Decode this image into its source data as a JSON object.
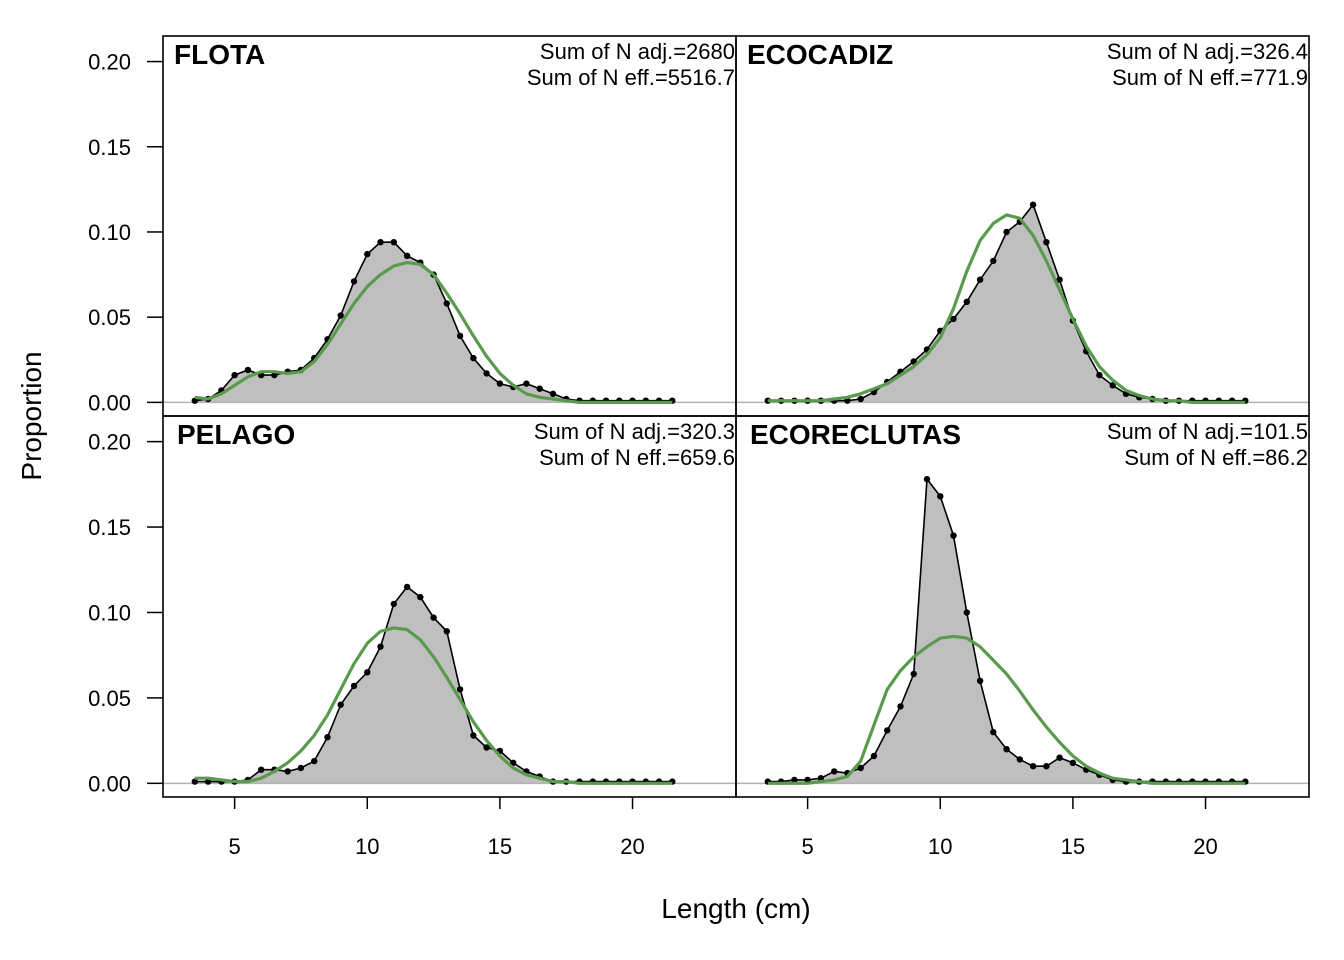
{
  "chart_data": {
    "type": "area",
    "xlabel": "Length (cm)",
    "ylabel": "Proportion",
    "xlim": [
      2.3,
      23.9
    ],
    "ylim": [
      -0.008,
      0.215
    ],
    "x_ticks": [
      5,
      10,
      15,
      20
    ],
    "x_tick_labels": [
      "5",
      "10",
      "15",
      "20"
    ],
    "y_ticks": [
      0,
      0.05,
      0.1,
      0.15,
      0.2
    ],
    "y_tick_labels": [
      "0.00",
      "0.05",
      "0.10",
      "0.15",
      "0.20"
    ],
    "grid": false,
    "legend": "none",
    "colors": {
      "observed_fill": "#bfbfbf",
      "observed_line": "#000000",
      "expected_line": "#5a9a4e",
      "zero_line": "#b3b3b3"
    },
    "x": [
      3.5,
      4,
      4.5,
      5,
      5.5,
      6,
      6.5,
      7,
      7.5,
      8,
      8.5,
      9,
      9.5,
      10,
      10.5,
      11,
      11.5,
      12,
      12.5,
      13,
      13.5,
      14,
      14.5,
      15,
      15.5,
      16,
      16.5,
      17,
      17.5,
      18,
      18.5,
      19,
      19.5,
      20,
      20.5,
      21,
      21.5
    ],
    "panels": [
      {
        "title": "FLOTA",
        "stat_adj": "Sum of N adj.=2680",
        "stat_eff": "Sum of N eff.=5516.7",
        "observed": [
          0.001,
          0.002,
          0.007,
          0.016,
          0.019,
          0.016,
          0.016,
          0.018,
          0.019,
          0.026,
          0.037,
          0.051,
          0.071,
          0.087,
          0.094,
          0.094,
          0.086,
          0.082,
          0.075,
          0.058,
          0.039,
          0.026,
          0.017,
          0.011,
          0.009,
          0.011,
          0.008,
          0.005,
          0.002,
          0.001,
          0.001,
          0.001,
          0.001,
          0.001,
          0.001,
          0.001,
          0.001
        ],
        "expected": [
          0.003,
          0.002,
          0.005,
          0.01,
          0.015,
          0.018,
          0.018,
          0.017,
          0.018,
          0.024,
          0.034,
          0.046,
          0.058,
          0.068,
          0.075,
          0.08,
          0.082,
          0.081,
          0.075,
          0.064,
          0.052,
          0.039,
          0.027,
          0.017,
          0.01,
          0.005,
          0.003,
          0.002,
          0.001,
          0,
          0,
          0,
          0,
          0,
          0,
          0,
          0
        ]
      },
      {
        "title": "ECOCADIZ",
        "stat_adj": "Sum of N adj.=326.4",
        "stat_eff": "Sum of N eff.=771.9",
        "observed": [
          0.001,
          0.001,
          0.001,
          0.001,
          0.001,
          0.001,
          0.001,
          0.002,
          0.006,
          0.012,
          0.018,
          0.024,
          0.031,
          0.042,
          0.049,
          0.059,
          0.072,
          0.083,
          0.1,
          0.106,
          0.116,
          0.094,
          0.072,
          0.048,
          0.03,
          0.016,
          0.01,
          0.005,
          0.003,
          0.002,
          0.001,
          0.001,
          0.001,
          0.001,
          0.001,
          0.001,
          0.001
        ],
        "expected": [
          0.001,
          0.001,
          0.001,
          0.001,
          0.001,
          0.002,
          0.003,
          0.005,
          0.008,
          0.011,
          0.016,
          0.021,
          0.028,
          0.038,
          0.055,
          0.077,
          0.095,
          0.105,
          0.11,
          0.108,
          0.098,
          0.083,
          0.066,
          0.049,
          0.033,
          0.021,
          0.013,
          0.007,
          0.004,
          0.002,
          0.001,
          0.001,
          0,
          0,
          0,
          0,
          0
        ]
      },
      {
        "title": "PELAGO",
        "stat_adj": "Sum of N adj.=320.3",
        "stat_eff": "Sum of N eff.=659.6",
        "observed": [
          0.001,
          0.001,
          0.001,
          0.001,
          0.002,
          0.008,
          0.008,
          0.007,
          0.009,
          0.013,
          0.027,
          0.046,
          0.057,
          0.065,
          0.08,
          0.105,
          0.115,
          0.109,
          0.097,
          0.089,
          0.055,
          0.028,
          0.021,
          0.019,
          0.012,
          0.007,
          0.004,
          0.001,
          0.001,
          0.001,
          0.001,
          0.001,
          0.001,
          0.001,
          0.001,
          0.001,
          0.001
        ],
        "expected": [
          0.003,
          0.003,
          0.002,
          0.001,
          0.001,
          0.003,
          0.007,
          0.012,
          0.019,
          0.028,
          0.04,
          0.055,
          0.07,
          0.082,
          0.089,
          0.091,
          0.09,
          0.084,
          0.074,
          0.062,
          0.049,
          0.036,
          0.025,
          0.016,
          0.009,
          0.005,
          0.003,
          0.001,
          0.001,
          0,
          0,
          0,
          0,
          0,
          0,
          0,
          0
        ]
      },
      {
        "title": "ECORECLUTAS",
        "stat_adj": "Sum of N adj.=101.5",
        "stat_eff": "Sum of N eff.=86.2",
        "observed": [
          0.001,
          0.001,
          0.002,
          0.002,
          0.003,
          0.007,
          0.006,
          0.009,
          0.016,
          0.031,
          0.045,
          0.064,
          0.178,
          0.168,
          0.145,
          0.1,
          0.06,
          0.03,
          0.02,
          0.014,
          0.01,
          0.01,
          0.015,
          0.012,
          0.008,
          0.005,
          0.002,
          0.001,
          0.001,
          0.001,
          0.001,
          0.001,
          0.001,
          0.001,
          0.001,
          0.001,
          0.001
        ],
        "expected": [
          0,
          0,
          0,
          0,
          0.001,
          0.002,
          0.004,
          0.013,
          0.034,
          0.055,
          0.066,
          0.074,
          0.08,
          0.085,
          0.086,
          0.085,
          0.08,
          0.072,
          0.064,
          0.054,
          0.043,
          0.033,
          0.024,
          0.016,
          0.01,
          0.006,
          0.003,
          0.002,
          0.001,
          0,
          0,
          0,
          0,
          0,
          0,
          0,
          0
        ]
      }
    ]
  }
}
